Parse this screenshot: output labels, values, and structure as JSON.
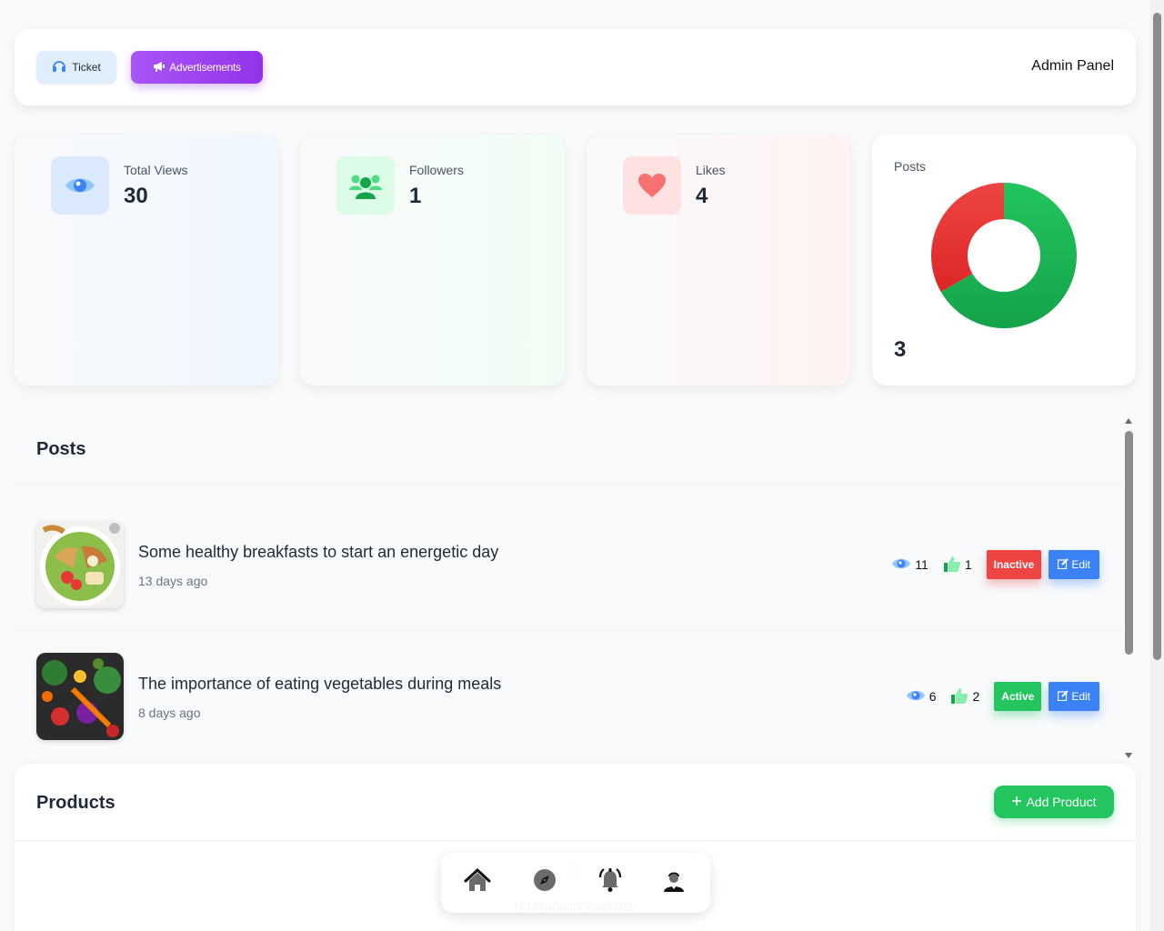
{
  "header": {
    "ticket_label": "Ticket",
    "ads_label": "Advertisements",
    "title": "Admin Panel"
  },
  "stats": {
    "views": {
      "label": "Total Views",
      "value": "30"
    },
    "followers": {
      "label": "Followers",
      "value": "1"
    },
    "likes": {
      "label": "Likes",
      "value": "4"
    },
    "posts": {
      "label": "Posts",
      "value": "3"
    }
  },
  "posts_chart": {
    "type": "pie",
    "segments": [
      {
        "value": 2,
        "color": "#16a34a"
      },
      {
        "value": 1,
        "color": "#ef4444"
      }
    ]
  },
  "posts": {
    "title": "Posts",
    "items": [
      {
        "title": "Some healthy breakfasts to start an energetic day",
        "time": "13 days ago",
        "views": "11",
        "likes": "1",
        "status": "Inactive",
        "edit": "Edit"
      },
      {
        "title": "The importance of eating vegetables during meals",
        "time": "8 days ago",
        "views": "6",
        "likes": "2",
        "status": "Active",
        "edit": "Edit"
      }
    ]
  },
  "products": {
    "title": "Products",
    "add_label": "Add Product",
    "empty_text": "No products available"
  },
  "icons": [
    "headset-icon",
    "megaphone-icon",
    "eye-icon",
    "users-icon",
    "heart-icon",
    "thumbs-up-icon",
    "edit-icon",
    "plus-icon",
    "home-icon",
    "compass-icon",
    "bell-icon",
    "user-icon"
  ],
  "colors": {
    "purple": "#9333ea",
    "green": "#22c55e",
    "red": "#ef4444",
    "blue": "#3b82f6"
  }
}
